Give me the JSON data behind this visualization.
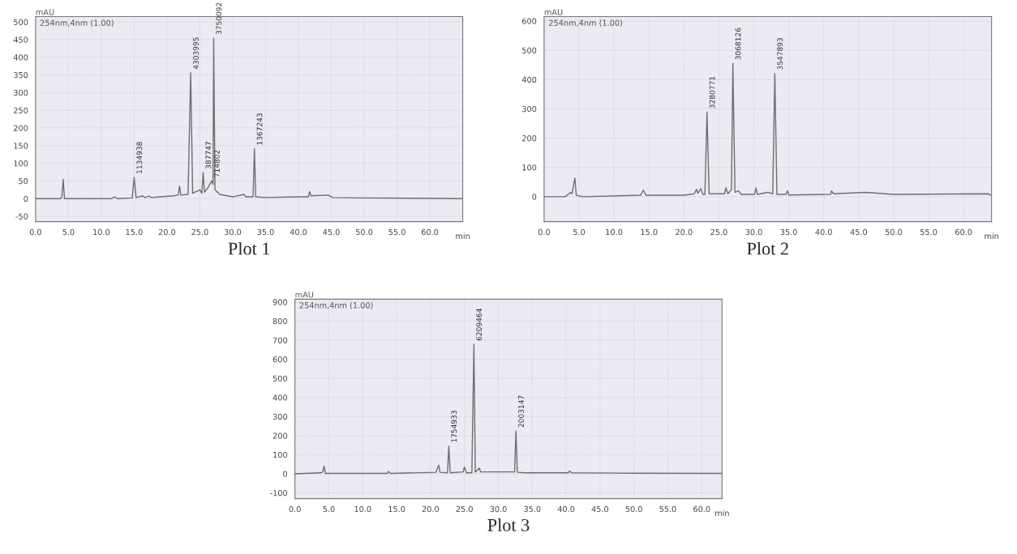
{
  "chart_data": [
    {
      "type": "line",
      "title": "Plot 1",
      "xlabel": "min",
      "ylabel": "mAU",
      "grid": true,
      "xlim": [
        0,
        65
      ],
      "ylim": [
        -65,
        515
      ],
      "xticks": [
        {
          "value": 0,
          "label": "0.0"
        },
        {
          "value": 5,
          "label": "5.0"
        },
        {
          "value": 10,
          "label": "10.0"
        },
        {
          "value": 15,
          "label": "15.0"
        },
        {
          "value": 20,
          "label": "20.0"
        },
        {
          "value": 25,
          "label": "25.0"
        },
        {
          "value": 30,
          "label": "30.0"
        },
        {
          "value": 35,
          "label": "35.0"
        },
        {
          "value": 40,
          "label": "40.0"
        },
        {
          "value": 45,
          "label": "45.0"
        },
        {
          "value": 50,
          "label": "50.0"
        },
        {
          "value": 55,
          "label": "55.0"
        },
        {
          "value": 60,
          "label": "60.0"
        }
      ],
      "yticks": [
        -50,
        0,
        50,
        100,
        150,
        200,
        250,
        300,
        350,
        400,
        450,
        500
      ],
      "series": [
        {
          "name": "254nm,4nm (1.00)",
          "color": "#6e6e6e",
          "x": [
            0,
            3.8,
            4.0,
            4.2,
            4.4,
            11.5,
            12,
            12.5,
            14.7,
            15.0,
            15.3,
            16.3,
            16.6,
            17.3,
            17.6,
            19,
            21,
            21.7,
            21.9,
            22.1,
            23.2,
            23.6,
            23.9,
            25.0,
            25.3,
            25.5,
            25.7,
            26.2,
            26.8,
            27.0,
            27.1,
            27.3,
            28,
            30,
            31.7,
            32,
            33.1,
            33.3,
            33.5,
            35,
            40,
            41.5,
            41.7,
            41.9,
            44.5,
            45.2,
            50,
            65
          ],
          "values": [
            0,
            0,
            5,
            55,
            0,
            0,
            5,
            0,
            2,
            60,
            3,
            8,
            3,
            7,
            3,
            5,
            8,
            10,
            35,
            10,
            12,
            356,
            15,
            25,
            15,
            74,
            18,
            30,
            50,
            40,
            454,
            25,
            12,
            5,
            12,
            5,
            5,
            141,
            5,
            3,
            5,
            5,
            20,
            8,
            10,
            3,
            2,
            0
          ]
        }
      ],
      "annotations": [
        {
          "text": "1134938",
          "x": 15.0,
          "y": 60
        },
        {
          "text": "4303995",
          "x": 23.6,
          "y": 356
        },
        {
          "text": "387747",
          "x": 25.5,
          "y": 74
        },
        {
          "text": "714802",
          "x": 26.8,
          "y": 50
        },
        {
          "text": "3750092",
          "x": 27.1,
          "y": 454
        },
        {
          "text": "1367243",
          "x": 33.3,
          "y": 141
        }
      ]
    },
    {
      "type": "line",
      "title": "Plot 2",
      "xlabel": "min",
      "ylabel": "mAU",
      "grid": true,
      "xlim": [
        0,
        64
      ],
      "ylim": [
        -85,
        615
      ],
      "xticks": [
        {
          "value": 0,
          "label": "0.0"
        },
        {
          "value": 5,
          "label": "5.0"
        },
        {
          "value": 10,
          "label": "10.0"
        },
        {
          "value": 15,
          "label": "15.0"
        },
        {
          "value": 20,
          "label": "20.0"
        },
        {
          "value": 25,
          "label": "25.0"
        },
        {
          "value": 30,
          "label": "30.0"
        },
        {
          "value": 35,
          "label": "35.0"
        },
        {
          "value": 40,
          "label": "40.0"
        },
        {
          "value": 45,
          "label": "45.0"
        },
        {
          "value": 50,
          "label": "50.0"
        },
        {
          "value": 55,
          "label": "55.0"
        },
        {
          "value": 60,
          "label": "60.0"
        }
      ],
      "yticks": [
        0,
        100,
        200,
        300,
        400,
        500,
        600
      ],
      "series": [
        {
          "name": "254nm,4nm (1.00)",
          "color": "#6e6e6e",
          "x": [
            0,
            3,
            3.8,
            4.0,
            4.4,
            4.6,
            5.5,
            13.8,
            14.2,
            14.6,
            20,
            21.5,
            21.8,
            22.0,
            22.4,
            22.7,
            23.0,
            23.3,
            23.6,
            25.8,
            26.0,
            26.3,
            26.8,
            27.0,
            27.3,
            27.8,
            28.2,
            30.1,
            30.3,
            30.5,
            32.0,
            32.7,
            33.0,
            33.3,
            34.6,
            34.8,
            35.0,
            41.0,
            41.1,
            41.4,
            46,
            50,
            63.5,
            64
          ],
          "values": [
            0,
            0,
            15,
            10,
            64,
            5,
            0,
            5,
            22,
            5,
            5,
            10,
            25,
            12,
            28,
            8,
            8,
            289,
            10,
            10,
            30,
            10,
            25,
            455,
            15,
            20,
            8,
            8,
            30,
            8,
            15,
            10,
            421,
            8,
            8,
            20,
            6,
            8,
            20,
            10,
            15,
            8,
            10,
            5
          ]
        }
      ],
      "annotations": [
        {
          "text": "3280771",
          "x": 23.3,
          "y": 289
        },
        {
          "text": "3068126",
          "x": 27.0,
          "y": 455
        },
        {
          "text": "3547893",
          "x": 33.0,
          "y": 421
        }
      ]
    },
    {
      "type": "line",
      "title": "Plot 3",
      "xlabel": "min",
      "ylabel": "mAU",
      "grid": true,
      "xlim": [
        0,
        63
      ],
      "ylim": [
        -130,
        915
      ],
      "xticks": [
        {
          "value": 0,
          "label": "0.0"
        },
        {
          "value": 5,
          "label": "5.0"
        },
        {
          "value": 10,
          "label": "10.0"
        },
        {
          "value": 15,
          "label": "15.0"
        },
        {
          "value": 20,
          "label": "20.0"
        },
        {
          "value": 25,
          "label": "25.0"
        },
        {
          "value": 30,
          "label": "30.0"
        },
        {
          "value": 35,
          "label": "35.0"
        },
        {
          "value": 40,
          "label": "40.0"
        },
        {
          "value": 45,
          "label": "45.0"
        },
        {
          "value": 50,
          "label": "50.0"
        },
        {
          "value": 55,
          "label": "55.0"
        },
        {
          "value": 60,
          "label": "60.0"
        }
      ],
      "yticks": [
        -100,
        0,
        100,
        200,
        300,
        400,
        500,
        600,
        700,
        800,
        900
      ],
      "series": [
        {
          "name": "254nm,4nm (1.00)",
          "color": "#6e6e6e",
          "x": [
            0,
            3.8,
            4.1,
            4.3,
            4.5,
            13.6,
            13.8,
            14.1,
            20.8,
            21.2,
            21.4,
            22.5,
            22.7,
            22.9,
            24.8,
            25.0,
            25.3,
            26.1,
            26.4,
            26.6,
            27.2,
            27.4,
            32.0,
            32.4,
            32.6,
            32.8,
            34,
            40.3,
            40.5,
            40.8,
            50,
            63
          ],
          "values": [
            0,
            5,
            10,
            40,
            2,
            2,
            12,
            2,
            8,
            45,
            8,
            5,
            145,
            5,
            10,
            35,
            5,
            5,
            679,
            8,
            30,
            10,
            10,
            10,
            224,
            8,
            5,
            5,
            15,
            5,
            3,
            2
          ]
        }
      ],
      "annotations": [
        {
          "text": "1754933",
          "x": 22.7,
          "y": 145
        },
        {
          "text": "6209464",
          "x": 26.4,
          "y": 679
        },
        {
          "text": "2003147",
          "x": 32.6,
          "y": 224
        }
      ]
    }
  ]
}
